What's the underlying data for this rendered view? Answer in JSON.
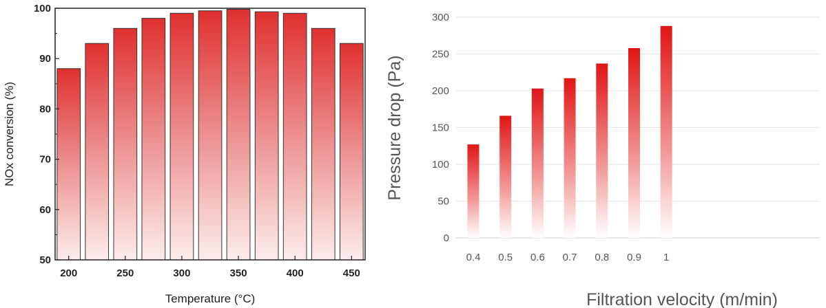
{
  "chart_data": [
    {
      "type": "bar",
      "xlabel": "Temperature (°C)",
      "ylabel": "NOx conversion (%)",
      "x": [
        200,
        225,
        250,
        275,
        300,
        325,
        350,
        375,
        400,
        425,
        450
      ],
      "values": [
        88,
        93,
        96,
        98,
        99,
        99.5,
        99.8,
        99.3,
        99,
        96,
        93
      ],
      "x_ticks": [
        "200",
        "250",
        "300",
        "350",
        "400",
        "450"
      ],
      "y_ticks": [
        "50",
        "60",
        "70",
        "80",
        "90",
        "100"
      ],
      "ylim": [
        50,
        100
      ],
      "xlim": [
        188,
        462
      ],
      "grid": false,
      "bar_color": "#e03030"
    },
    {
      "type": "bar",
      "xlabel": "Filtration velocity (m/min)",
      "ylabel": "Pressure drop (Pa)",
      "categories": [
        "0.4",
        "0.5",
        "0.6",
        "0.7",
        "0.8",
        "0.9",
        "1"
      ],
      "values": [
        127,
        166,
        203,
        217,
        237,
        258,
        288
      ],
      "y_ticks": [
        "0",
        "50",
        "100",
        "150",
        "200",
        "250",
        "300"
      ],
      "ylim": [
        0,
        300
      ],
      "grid": true,
      "bar_color": "#e01515"
    }
  ]
}
